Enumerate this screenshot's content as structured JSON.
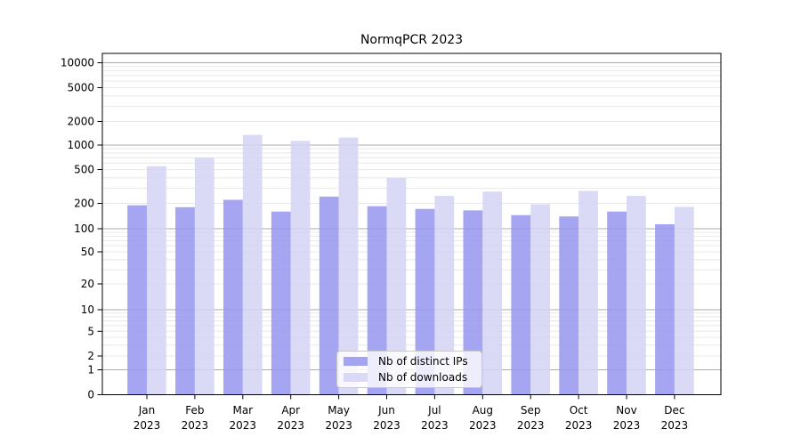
{
  "chart_data": {
    "type": "bar",
    "title": "NormqPCR 2023",
    "xlabel": "",
    "ylabel": "",
    "yscale": "symlog",
    "ylim": [
      0,
      13000
    ],
    "grid": true,
    "legend_position": "lower center",
    "categories": [
      "Jan",
      "Feb",
      "Mar",
      "Apr",
      "May",
      "Jun",
      "Jul",
      "Aug",
      "Sep",
      "Oct",
      "Nov",
      "Dec"
    ],
    "category_year": "2023",
    "yticks": [
      0,
      1,
      2,
      5,
      10,
      20,
      50,
      100,
      200,
      500,
      1000,
      2000,
      5000,
      10000
    ],
    "series": [
      {
        "name": "Nb of distinct IPs",
        "color": "#9595ee",
        "values": [
          190,
          180,
          220,
          160,
          240,
          185,
          172,
          165,
          145,
          140,
          160,
          113
        ]
      },
      {
        "name": "Nb of downloads",
        "color": "#d3d3f6",
        "values": [
          550,
          700,
          1350,
          1130,
          1250,
          400,
          245,
          275,
          195,
          280,
          245,
          182
        ]
      }
    ]
  }
}
